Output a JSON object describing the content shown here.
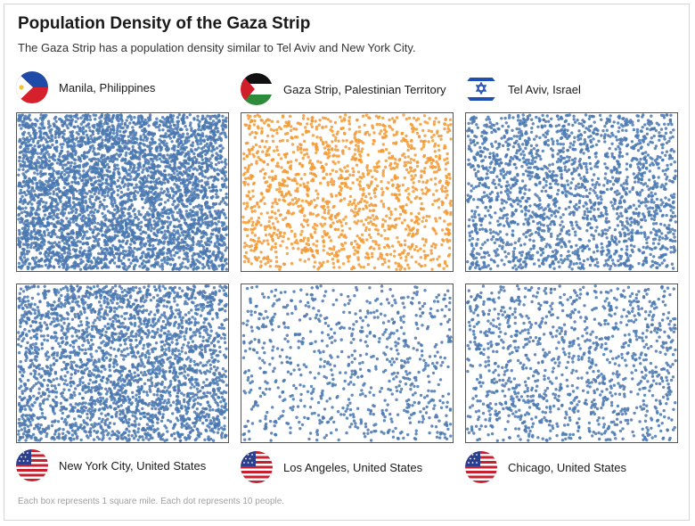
{
  "header": {
    "title": "Population Density of the Gaza Strip",
    "subtitle": "The Gaza Strip has a population density similar to Tel Aviv and New York City."
  },
  "footnote": "Each box represents 1 square mile. Each dot represents 10 people.",
  "colors": {
    "default_dot": "#4a78b0",
    "highlight_dot": "#f29a35"
  },
  "chart_data": {
    "type": "scatter",
    "title": "Population Density of the Gaza Strip",
    "subtitle": "The Gaza Strip has a population density similar to Tel Aviv and New York City.",
    "unit_box": "1 square mile",
    "unit_dot": "10 people",
    "series": [
      {
        "name": "Manila, Philippines",
        "flag": "philippines-flag",
        "dots": 4300,
        "color": "#4a78b0"
      },
      {
        "name": "Gaza Strip, Palestinian Territory",
        "flag": "palestine-flag",
        "dots": 1500,
        "color": "#f29a35"
      },
      {
        "name": "Tel Aviv, Israel",
        "flag": "israel-flag",
        "dots": 2000,
        "color": "#4a78b0"
      },
      {
        "name": "New York City, United States",
        "flag": "usa-flag",
        "dots": 2800,
        "color": "#4a78b0"
      },
      {
        "name": "Los Angeles, United States",
        "flag": "usa-flag",
        "dots": 800,
        "color": "#4a78b0"
      },
      {
        "name": "Chicago, United States",
        "flag": "usa-flag",
        "dots": 1200,
        "color": "#4a78b0"
      }
    ]
  }
}
